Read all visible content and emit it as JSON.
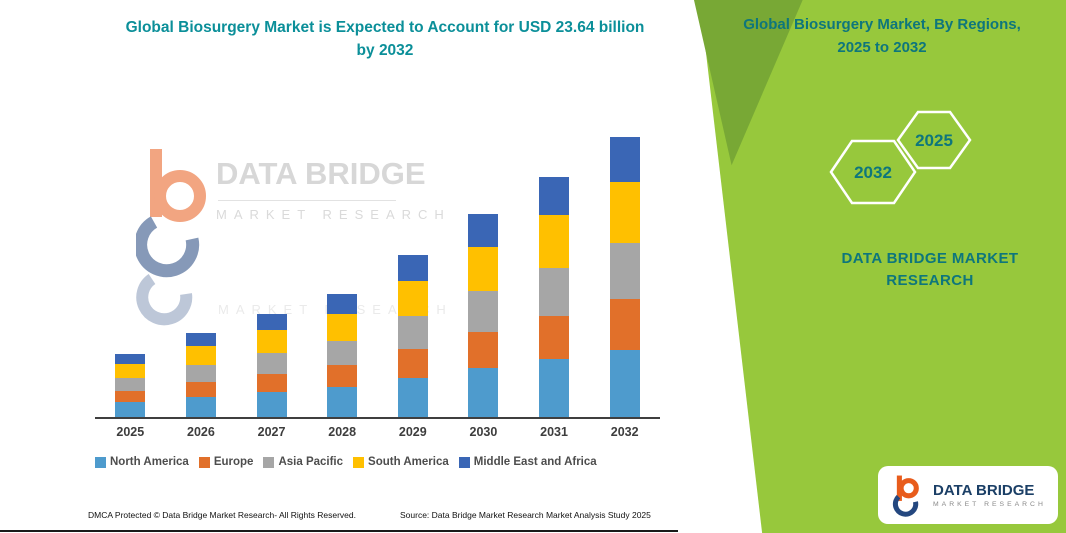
{
  "colors": {
    "teal_title": "#0b8f99",
    "teal_right": "#0e767c",
    "green_panel": "#97C83C",
    "green_accent": "#78A835",
    "axis": "#3f3f3f",
    "legend_text": "#4d4d4d",
    "logo_orange": "#E85C1C",
    "logo_navy": "#24477F"
  },
  "left_panel": {
    "title": "Global Biosurgery Market is Expected to Account for USD 23.64 billion by 2032",
    "watermark": {
      "brand": "DATA BRIDGE",
      "sub": "MARKET RESEARCH"
    },
    "footer": {
      "dmca": "DMCA Protected © Data Bridge Market Research- All Rights Reserved.",
      "source": "Source: Data Bridge Market Research Market Analysis Study 2025"
    }
  },
  "right_panel": {
    "title": "Global Biosurgery Market, By Regions, 2025 to 2032",
    "hexagon_back": "2032",
    "hexagon_front": "2025",
    "brand_text": "DATA BRIDGE MARKET RESEARCH",
    "logo_box": {
      "brand": "DATA BRIDGE",
      "sub": "MARKET RESEARCH"
    }
  },
  "chart_data": {
    "type": "bar",
    "stacked": true,
    "unit": "USD billion",
    "title": "Global Biosurgery Market is Expected to Account for USD 23.64 billion by 2032",
    "categories": [
      "2025",
      "2026",
      "2027",
      "2028",
      "2029",
      "2030",
      "2031",
      "2032"
    ],
    "series": [
      {
        "name": "North America",
        "color": "#4E9BCD",
        "values": [
          1.27,
          1.7,
          2.09,
          2.5,
          3.29,
          4.1,
          4.87,
          5.67
        ]
      },
      {
        "name": "Europe",
        "color": "#E1702A",
        "values": [
          0.95,
          1.28,
          1.57,
          1.87,
          2.47,
          3.08,
          3.65,
          4.26
        ]
      },
      {
        "name": "Asia Pacific",
        "color": "#A6A6A6",
        "values": [
          1.06,
          1.42,
          1.74,
          2.08,
          2.74,
          3.42,
          4.06,
          4.73
        ]
      },
      {
        "name": "South America",
        "color": "#FFC000",
        "values": [
          1.17,
          1.56,
          1.91,
          2.29,
          3.01,
          3.76,
          4.47,
          5.2
        ]
      },
      {
        "name": "Middle East and Africa",
        "color": "#3A66B5",
        "values": [
          0.85,
          1.14,
          1.39,
          1.66,
          2.19,
          2.74,
          3.25,
          3.78
        ]
      }
    ],
    "legend_position": "bottom",
    "gridlines": false,
    "xlabel": "",
    "ylabel": "",
    "total_2032": 23.64
  }
}
